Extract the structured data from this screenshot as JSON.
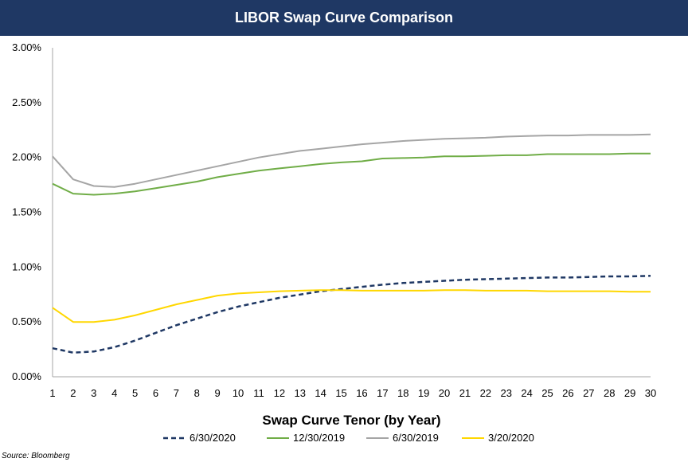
{
  "chart_data": {
    "type": "line",
    "title": "LIBOR Swap Curve Comparison",
    "xlabel": "Swap Curve Tenor (by Year)",
    "ylabel": "",
    "x": [
      1,
      2,
      3,
      4,
      5,
      6,
      7,
      8,
      9,
      10,
      11,
      12,
      13,
      14,
      15,
      16,
      17,
      18,
      19,
      20,
      21,
      22,
      23,
      24,
      25,
      26,
      27,
      28,
      29,
      30
    ],
    "ylim": [
      0,
      3.0
    ],
    "yticks": [
      0,
      0.5,
      1.0,
      1.5,
      2.0,
      2.5,
      3.0
    ],
    "ytick_labels": [
      "0.00%",
      "0.50%",
      "1.00%",
      "1.50%",
      "2.00%",
      "2.50%",
      "3.00%"
    ],
    "grid": false,
    "legend_position": "bottom",
    "series": [
      {
        "name": "6/30/2020",
        "color": "#1f3864",
        "dashed": true,
        "values": [
          0.26,
          0.22,
          0.23,
          0.27,
          0.33,
          0.4,
          0.47,
          0.53,
          0.59,
          0.64,
          0.68,
          0.72,
          0.75,
          0.78,
          0.8,
          0.82,
          0.84,
          0.855,
          0.865,
          0.875,
          0.885,
          0.89,
          0.895,
          0.9,
          0.905,
          0.905,
          0.91,
          0.915,
          0.915,
          0.92
        ]
      },
      {
        "name": "12/30/2019",
        "color": "#70ad47",
        "dashed": false,
        "values": [
          1.76,
          1.67,
          1.66,
          1.67,
          1.69,
          1.72,
          1.75,
          1.78,
          1.82,
          1.85,
          1.88,
          1.9,
          1.92,
          1.94,
          1.955,
          1.965,
          1.99,
          1.995,
          2.0,
          2.01,
          2.01,
          2.015,
          2.02,
          2.02,
          2.03,
          2.03,
          2.03,
          2.03,
          2.035,
          2.035
        ]
      },
      {
        "name": "6/30/2019",
        "color": "#a5a5a5",
        "dashed": false,
        "values": [
          2.01,
          1.8,
          1.74,
          1.73,
          1.76,
          1.8,
          1.84,
          1.88,
          1.92,
          1.96,
          2.0,
          2.03,
          2.06,
          2.08,
          2.1,
          2.12,
          2.135,
          2.15,
          2.16,
          2.17,
          2.175,
          2.18,
          2.19,
          2.195,
          2.2,
          2.2,
          2.205,
          2.205,
          2.205,
          2.21
        ]
      },
      {
        "name": "3/20/2020",
        "color": "#ffd700",
        "dashed": false,
        "values": [
          0.63,
          0.5,
          0.5,
          0.52,
          0.56,
          0.61,
          0.66,
          0.7,
          0.74,
          0.76,
          0.77,
          0.78,
          0.785,
          0.79,
          0.79,
          0.785,
          0.785,
          0.785,
          0.785,
          0.79,
          0.79,
          0.785,
          0.785,
          0.785,
          0.78,
          0.78,
          0.78,
          0.78,
          0.775,
          0.775
        ]
      }
    ]
  },
  "footer": {
    "source": "Source: Bloomberg"
  }
}
